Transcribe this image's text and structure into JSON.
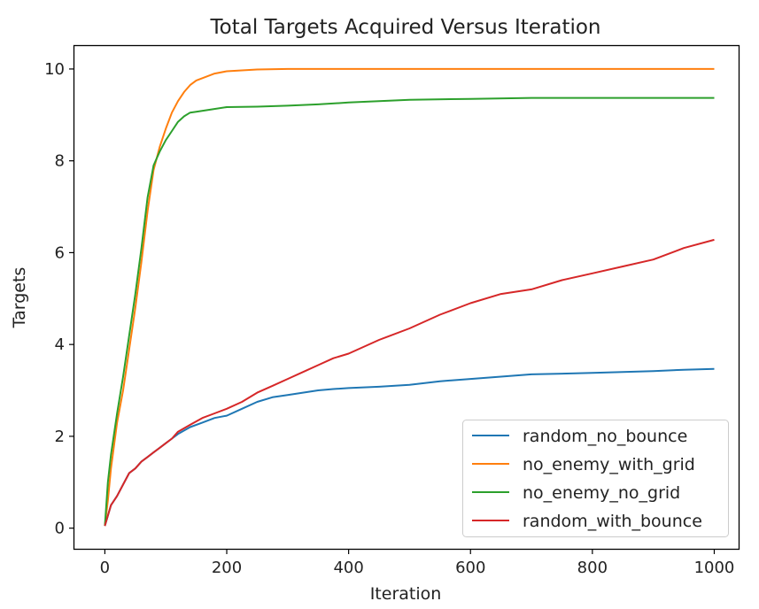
{
  "chart_data": {
    "type": "line",
    "title": "Total Targets Acquired Versus Iteration",
    "xlabel": "Iteration",
    "ylabel": "Targets",
    "xlim": [
      -50,
      1040
    ],
    "ylim": [
      -0.45,
      10.5
    ],
    "xticks": [
      0,
      200,
      400,
      600,
      800,
      1000
    ],
    "yticks": [
      0,
      2,
      4,
      6,
      8,
      10
    ],
    "grid": false,
    "legend_position": "lower-right",
    "series": [
      {
        "name": "random_no_bounce",
        "color": "#1f77b4",
        "x": [
          0,
          10,
          20,
          30,
          40,
          50,
          60,
          70,
          80,
          90,
          100,
          110,
          120,
          140,
          160,
          180,
          200,
          225,
          250,
          275,
          300,
          325,
          350,
          375,
          400,
          450,
          500,
          550,
          600,
          650,
          700,
          800,
          900,
          950,
          1000
        ],
        "y": [
          0.05,
          0.5,
          0.7,
          0.95,
          1.2,
          1.3,
          1.45,
          1.55,
          1.65,
          1.75,
          1.85,
          1.95,
          2.05,
          2.2,
          2.3,
          2.4,
          2.45,
          2.6,
          2.75,
          2.85,
          2.9,
          2.95,
          3.0,
          3.03,
          3.05,
          3.08,
          3.12,
          3.2,
          3.25,
          3.3,
          3.35,
          3.38,
          3.42,
          3.45,
          3.47
        ]
      },
      {
        "name": "no_enemy_with_grid",
        "color": "#ff7f0e",
        "x": [
          0,
          5,
          10,
          20,
          30,
          40,
          50,
          60,
          70,
          80,
          90,
          100,
          110,
          120,
          130,
          140,
          150,
          160,
          170,
          180,
          200,
          225,
          250,
          300,
          400,
          500,
          600,
          700,
          800,
          900,
          1000
        ],
        "y": [
          0.05,
          0.6,
          1.3,
          2.3,
          3.0,
          3.9,
          4.8,
          5.8,
          6.9,
          7.8,
          8.3,
          8.7,
          9.05,
          9.3,
          9.5,
          9.65,
          9.75,
          9.8,
          9.85,
          9.9,
          9.95,
          9.97,
          9.99,
          10.0,
          10.0,
          10.0,
          10.0,
          10.0,
          10.0,
          10.0,
          10.0
        ]
      },
      {
        "name": "no_enemy_no_grid",
        "color": "#2ca02c",
        "x": [
          0,
          5,
          10,
          20,
          30,
          40,
          50,
          60,
          70,
          80,
          90,
          100,
          110,
          120,
          130,
          140,
          150,
          175,
          200,
          250,
          300,
          350,
          400,
          450,
          500,
          600,
          700,
          800,
          900,
          1000
        ],
        "y": [
          0.05,
          1.0,
          1.6,
          2.5,
          3.3,
          4.2,
          5.1,
          6.1,
          7.2,
          7.9,
          8.2,
          8.45,
          8.65,
          8.85,
          8.97,
          9.05,
          9.07,
          9.12,
          9.17,
          9.18,
          9.2,
          9.23,
          9.27,
          9.3,
          9.33,
          9.35,
          9.37,
          9.37,
          9.37,
          9.37
        ]
      },
      {
        "name": "random_with_bounce",
        "color": "#d62728",
        "x": [
          0,
          10,
          20,
          30,
          40,
          50,
          60,
          70,
          80,
          90,
          100,
          110,
          120,
          140,
          160,
          180,
          200,
          225,
          250,
          275,
          300,
          325,
          350,
          375,
          400,
          450,
          500,
          550,
          600,
          650,
          700,
          750,
          800,
          850,
          900,
          950,
          1000
        ],
        "y": [
          0.05,
          0.5,
          0.7,
          0.95,
          1.2,
          1.3,
          1.45,
          1.55,
          1.65,
          1.75,
          1.85,
          1.95,
          2.1,
          2.25,
          2.4,
          2.5,
          2.6,
          2.75,
          2.95,
          3.1,
          3.25,
          3.4,
          3.55,
          3.7,
          3.8,
          4.1,
          4.35,
          4.65,
          4.9,
          5.1,
          5.2,
          5.4,
          5.55,
          5.7,
          5.85,
          6.1,
          6.28
        ]
      }
    ]
  }
}
